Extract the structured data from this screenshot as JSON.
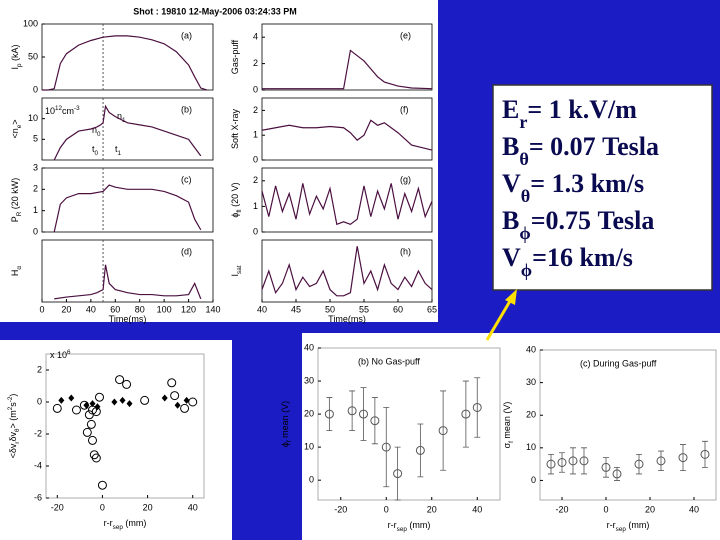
{
  "header": "Shot :  19810    12-May-2006 03:24:33 PM",
  "text_box": {
    "lines": [
      [
        {
          "t": "E"
        },
        {
          "sub": "r"
        },
        {
          "t": "= 1 k.V/m"
        }
      ],
      [
        {
          "t": "B"
        },
        {
          "sub": "θ"
        },
        {
          "t": "= 0.07 Tesla"
        }
      ],
      [
        {
          "t": "V"
        },
        {
          "sub": "θ"
        },
        {
          "t": "= 1.3 km/s"
        }
      ],
      [
        {
          "t": "B"
        },
        {
          "sub": "ϕ"
        },
        {
          "t": "=0.75 Tesla"
        }
      ],
      [
        {
          "t": "V"
        },
        {
          "sub": "ϕ"
        },
        {
          "t": "=16 km/s"
        }
      ]
    ]
  },
  "chart_data": [
    {
      "type": "line",
      "panel_label": "(a)",
      "ylabel": [
        {
          "t": "I"
        },
        {
          "sub": "p"
        },
        {
          "t": " (kA)"
        }
      ],
      "color": "#4b1040",
      "x": [
        0,
        5,
        10,
        15,
        20,
        30,
        40,
        50,
        60,
        70,
        80,
        90,
        100,
        110,
        120,
        125,
        130,
        135
      ],
      "values": [
        0,
        0,
        2,
        40,
        55,
        68,
        75,
        80,
        82,
        82,
        80,
        76,
        70,
        58,
        38,
        20,
        3,
        0
      ],
      "xlim": [
        0,
        140
      ],
      "ylim": [
        0,
        100
      ],
      "yticks": [
        0,
        50,
        100
      ],
      "vline": 50
    },
    {
      "type": "line",
      "panel_label": "(b)",
      "ylabel": [
        {
          "t": "<n"
        },
        {
          "sub": "e"
        },
        {
          "t": ">"
        }
      ],
      "color": "#4b1040",
      "annotations": [
        [
          {
            "t": "10"
          },
          {
            "sup": "12"
          },
          {
            "t": "cm"
          },
          {
            "sup": "-3"
          }
        ],
        [
          {
            "t": "n"
          },
          {
            "sub": "0"
          }
        ],
        [
          {
            "t": "n"
          },
          {
            "sub": "1"
          }
        ],
        [
          {
            "t": "t"
          },
          {
            "sub": "0"
          }
        ],
        [
          {
            "t": "t"
          },
          {
            "sub": "1"
          }
        ]
      ],
      "x": [
        10,
        15,
        20,
        30,
        40,
        45,
        48,
        50,
        52,
        55,
        60,
        70,
        80,
        90,
        100,
        110,
        120,
        125,
        130
      ],
      "values": [
        0,
        3,
        5,
        7,
        7.5,
        8,
        8.5,
        9,
        13,
        11.5,
        10.5,
        9,
        8.5,
        8,
        7,
        6,
        5,
        3,
        1
      ],
      "xlim": [
        0,
        140
      ],
      "ylim": [
        0,
        15
      ],
      "yticks": [
        5,
        10
      ],
      "vline": 50
    },
    {
      "type": "line",
      "panel_label": "(c)",
      "ylabel": [
        {
          "t": "P"
        },
        {
          "sub": "R"
        },
        {
          "t": " (20 kW)"
        }
      ],
      "color": "#4b1040",
      "x": [
        10,
        15,
        20,
        30,
        40,
        50,
        55,
        60,
        70,
        80,
        90,
        100,
        110,
        120,
        125,
        130
      ],
      "values": [
        0,
        1.3,
        1.6,
        1.8,
        1.8,
        1.9,
        2.2,
        2.1,
        2.0,
        2.0,
        2.0,
        1.9,
        1.7,
        1.4,
        0.6,
        0.1
      ],
      "xlim": [
        0,
        140
      ],
      "ylim": [
        0,
        3
      ],
      "yticks": [
        0,
        1,
        2,
        3
      ],
      "vline": 50
    },
    {
      "type": "line",
      "panel_label": "(d)",
      "ylabel": [
        {
          "t": "H"
        },
        {
          "sub": "α"
        }
      ],
      "color": "#4b1040",
      "x": [
        10,
        20,
        30,
        40,
        45,
        50,
        52,
        55,
        60,
        70,
        80,
        90,
        100,
        110,
        120,
        125,
        130
      ],
      "values": [
        0.05,
        0.08,
        0.1,
        0.12,
        0.15,
        0.2,
        0.6,
        0.3,
        0.2,
        0.15,
        0.12,
        0.12,
        0.1,
        0.1,
        0.12,
        0.3,
        0.05
      ],
      "xlim": [
        0,
        140
      ],
      "ylim": [
        0,
        1
      ],
      "xticks": [
        0,
        20,
        40,
        60,
        80,
        100,
        120,
        140
      ],
      "xlabel": [
        {
          "t": "Time(ms)"
        }
      ],
      "vline": 50
    },
    {
      "type": "line",
      "panel_label": "(e)",
      "ylabel": [
        {
          "t": "Gas-puff"
        }
      ],
      "color": "#4b1040",
      "x": [
        40,
        45,
        50,
        52,
        53,
        53.5,
        54,
        55,
        56,
        57,
        58,
        60,
        62,
        65
      ],
      "values": [
        0.1,
        0.1,
        0.1,
        0.1,
        3,
        2.8,
        2.6,
        2.2,
        1.6,
        1.0,
        0.6,
        0.3,
        0.15,
        0.1
      ],
      "xlim": [
        40,
        65
      ],
      "ylim": [
        0,
        5
      ],
      "yticks": [
        0,
        2,
        4
      ]
    },
    {
      "type": "line",
      "panel_label": "(f)",
      "ylabel": [
        {
          "t": "Soft X-ray"
        }
      ],
      "color": "#4b1040",
      "x": [
        40,
        42,
        44,
        46,
        48,
        50,
        52,
        53,
        54,
        55,
        56,
        57,
        58,
        60,
        62,
        65
      ],
      "values": [
        1.2,
        1.3,
        1.4,
        1.3,
        1.3,
        1.35,
        1.3,
        1.1,
        0.8,
        1.0,
        1.6,
        1.4,
        1.5,
        1.1,
        0.6,
        0.4
      ],
      "xlim": [
        40,
        65
      ],
      "ylim": [
        0,
        2.5
      ],
      "yticks": [
        0,
        1,
        2
      ]
    },
    {
      "type": "line",
      "panel_label": "(g)",
      "ylabel": [
        {
          "t": "ϕ"
        },
        {
          "sub": "fl"
        },
        {
          "t": " (20 V)"
        }
      ],
      "color": "#4b1040",
      "x": [
        40,
        41,
        42,
        43,
        44,
        45,
        46,
        47,
        48,
        49,
        50,
        51,
        52,
        53,
        54,
        55,
        56,
        57,
        58,
        59,
        60,
        61,
        62,
        63,
        64,
        65
      ],
      "values": [
        1.6,
        0.6,
        1.8,
        0.8,
        1.5,
        0.5,
        1.9,
        0.7,
        1.4,
        0.9,
        1.7,
        0.3,
        0.4,
        0.3,
        0.5,
        1.8,
        0.6,
        1.6,
        0.9,
        1.9,
        0.5,
        1.5,
        0.8,
        1.7,
        0.6,
        1.2
      ],
      "xlim": [
        40,
        65
      ],
      "ylim": [
        0,
        2.5
      ],
      "yticks": [
        0,
        1,
        2
      ]
    },
    {
      "type": "line",
      "panel_label": "(h)",
      "ylabel": [
        {
          "t": "I"
        },
        {
          "sub": "sat"
        }
      ],
      "color": "#4b1040",
      "x": [
        40,
        41,
        42,
        43,
        44,
        45,
        46,
        47,
        48,
        49,
        50,
        51,
        52,
        53,
        54,
        55,
        56,
        57,
        58,
        59,
        60,
        61,
        62,
        63,
        64,
        65
      ],
      "values": [
        0.2,
        0.5,
        0.15,
        0.3,
        0.6,
        0.2,
        0.4,
        0.25,
        0.3,
        0.5,
        0.2,
        0.1,
        0.1,
        0.15,
        0.9,
        0.3,
        0.5,
        0.2,
        0.6,
        0.3,
        0.2,
        0.4,
        0.25,
        0.5,
        0.3,
        0.2
      ],
      "xlim": [
        40,
        65
      ],
      "ylim": [
        0,
        1
      ],
      "xticks": [
        40,
        45,
        50,
        55,
        60,
        65
      ],
      "xlabel": [
        {
          "t": "Time(ms)"
        }
      ]
    },
    {
      "type": "scatter",
      "multiplier": [
        {
          "t": "x 10"
        },
        {
          "sup": "6"
        }
      ],
      "ylabel": [
        {
          "t": "<δv"
        },
        {
          "sub": "r"
        },
        {
          "t": "δv"
        },
        {
          "sub": "θ"
        },
        {
          "t": "> (m"
        },
        {
          "sup": "2"
        },
        {
          "t": "s"
        },
        {
          "sup": "-2"
        },
        {
          "t": ")"
        }
      ],
      "xlabel": [
        {
          "t": "r-r"
        },
        {
          "sub": "sep"
        },
        {
          "t": " (mm)"
        }
      ],
      "xlim": [
        -25,
        45
      ],
      "ylim": [
        -6,
        3
      ],
      "xticks": [
        -20,
        0,
        20,
        40
      ],
      "yticks": [
        2,
        0,
        -2,
        -4,
        -6
      ],
      "series": [
        {
          "marker": "diamond",
          "color": "#000000",
          "x": [
            -18.2,
            -13.8,
            -7.1,
            -4.4,
            -2.2,
            5.3,
            8.9,
            12,
            27.6,
            33.3,
            37.3
          ],
          "values": [
            0.1,
            0.25,
            -0.2,
            -0.1,
            -0.3,
            0,
            0.1,
            -0.1,
            0.25,
            -0.2,
            0.1
          ]
        },
        {
          "marker": "circle",
          "color": "#000000",
          "x": [
            -20,
            -11.5,
            -8,
            -5.8,
            -4.9,
            -4.4,
            -3.6,
            -2.7,
            -1.3,
            0,
            7.6,
            10.7,
            18.7,
            30.7,
            32,
            36.4,
            40,
            -6.7,
            -4.4,
            -2.7
          ],
          "values": [
            -0.4,
            -0.5,
            -0.2,
            -0.8,
            -1.4,
            -2.4,
            -3.3,
            -3.5,
            0.3,
            -5.2,
            1.4,
            1.1,
            0.1,
            1.2,
            0.4,
            -0.4,
            0,
            -1.9,
            -0.5,
            -0.6
          ]
        }
      ]
    },
    {
      "type": "scatter",
      "title": "(b) No Gas-puff",
      "marker": "circle",
      "color": "#555555",
      "ylabel": [
        {
          "t": "ϕ"
        },
        {
          "sub": "f"
        },
        {
          "t": " mean (V)"
        }
      ],
      "xlabel": [
        {
          "t": "r-r"
        },
        {
          "sub": "sep"
        },
        {
          "t": " (mm)"
        }
      ],
      "x": [
        -25,
        -15,
        -10,
        -5,
        0,
        5,
        15,
        25,
        35,
        40
      ],
      "values": [
        20,
        21,
        20,
        18,
        10,
        2,
        9,
        15,
        20,
        22
      ],
      "errors": [
        5,
        6,
        8,
        7,
        12,
        8,
        8,
        12,
        10,
        9
      ],
      "xlim": [
        -30,
        50
      ],
      "ylim": [
        -6,
        40
      ],
      "xticks": [
        -20,
        0,
        20,
        40
      ],
      "yticks": [
        0,
        10,
        20,
        30,
        40
      ]
    },
    {
      "type": "scatter",
      "title": "(c) During Gas-puff",
      "marker": "circle",
      "color": "#555555",
      "ylabel": [
        {
          "t": "σ"
        },
        {
          "sub": "f"
        },
        {
          "t": " mean (V)"
        }
      ],
      "xlabel": [
        {
          "t": "r-r"
        },
        {
          "sub": "sep"
        },
        {
          "t": " (mm)"
        }
      ],
      "x": [
        -25,
        -20,
        -15,
        -10,
        0,
        5,
        15,
        25,
        35,
        45
      ],
      "values": [
        5,
        5.5,
        6,
        6,
        4,
        2,
        5,
        6,
        7,
        8
      ],
      "errors": [
        3,
        3,
        4,
        4,
        3,
        2,
        3,
        3,
        4,
        4
      ],
      "xlim": [
        -30,
        50
      ],
      "ylim": [
        -6,
        40
      ],
      "xticks": [
        -20,
        0,
        20,
        40
      ],
      "yticks": [
        0,
        10,
        20,
        30,
        40
      ]
    }
  ]
}
